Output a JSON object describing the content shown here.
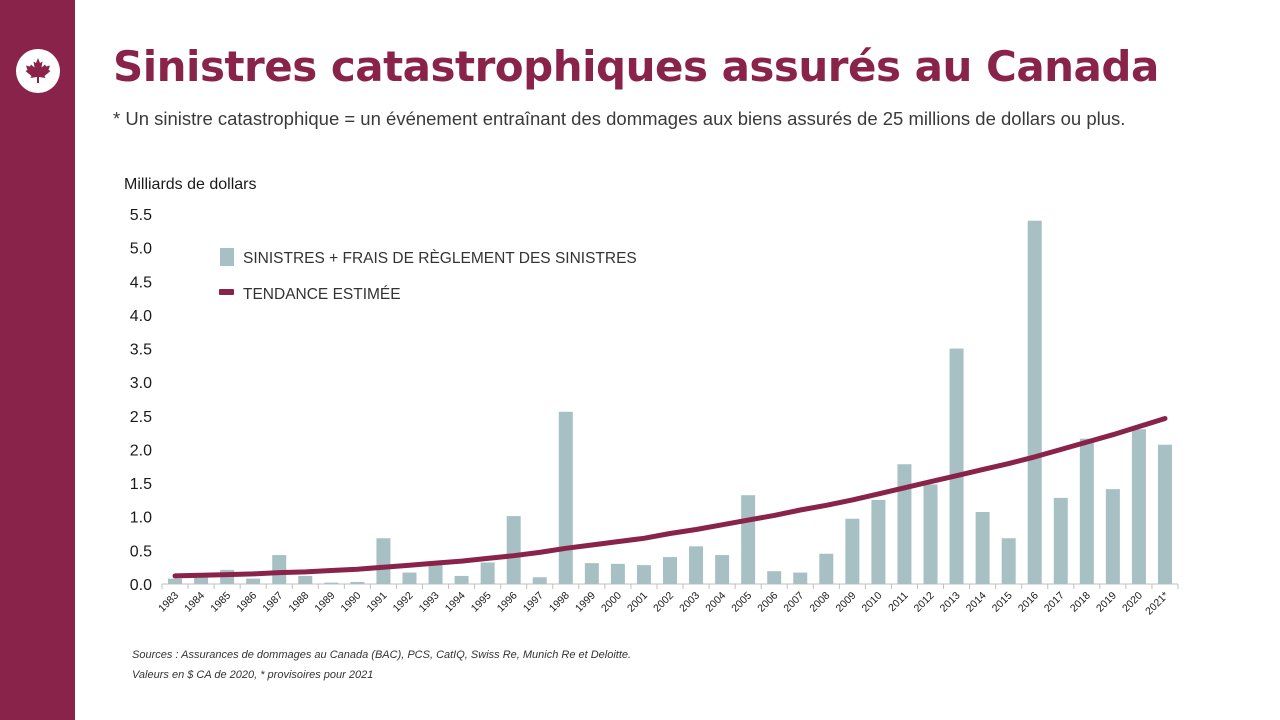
{
  "header": {
    "title": "Sinistres catastrophiques assurés au Canada",
    "subtitle": "* Un sinistre catastrophique = un événement entraînant des dommages aux biens assurés de 25 millions de dollars ou plus."
  },
  "logo": {
    "icon": "maple-leaf-icon"
  },
  "colors": {
    "brand": "#8a2349",
    "bars": "#a7c0c4",
    "trend": "#8a2349"
  },
  "chart_data": {
    "type": "bar",
    "ylabel": "Milliards de dollars",
    "ylim": [
      0,
      5.5
    ],
    "yticks": [
      "0.0",
      "0.5",
      "1.0",
      "1.5",
      "2.0",
      "2.5",
      "3.0",
      "3.5",
      "4.0",
      "4.5",
      "5.0",
      "5.5"
    ],
    "grid": false,
    "legend_position": "top-left",
    "categories": [
      "1983",
      "1984",
      "1985",
      "1986",
      "1987",
      "1988",
      "1989",
      "1990",
      "1991",
      "1992",
      "1993",
      "1994",
      "1995",
      "1996",
      "1997",
      "1998",
      "1999",
      "2000",
      "2001",
      "2002",
      "2003",
      "2004",
      "2005",
      "2006",
      "2007",
      "2008",
      "2009",
      "2010",
      "2011",
      "2012",
      "2013",
      "2014",
      "2015",
      "2016",
      "2017",
      "2018",
      "2019",
      "2020",
      "2021*"
    ],
    "series": [
      {
        "name": "SINISTRES + FRAIS DE RÈGLEMENT DES SINISTRES",
        "kind": "bar",
        "values": [
          0.08,
          0.15,
          0.21,
          0.08,
          0.43,
          0.12,
          0.02,
          0.03,
          0.68,
          0.17,
          0.3,
          0.12,
          0.32,
          1.01,
          0.1,
          2.56,
          0.31,
          0.3,
          0.28,
          0.4,
          0.56,
          0.43,
          1.32,
          0.19,
          0.17,
          0.45,
          0.97,
          1.25,
          1.78,
          1.48,
          3.5,
          1.07,
          0.68,
          5.4,
          1.28,
          2.16,
          1.41,
          2.3,
          2.07
        ]
      },
      {
        "name": "TENDANCE ESTIMÉE",
        "kind": "line",
        "values": [
          0.12,
          0.13,
          0.14,
          0.15,
          0.17,
          0.18,
          0.2,
          0.22,
          0.25,
          0.28,
          0.31,
          0.34,
          0.38,
          0.42,
          0.47,
          0.53,
          0.58,
          0.63,
          0.68,
          0.75,
          0.81,
          0.88,
          0.95,
          1.02,
          1.1,
          1.17,
          1.25,
          1.34,
          1.43,
          1.52,
          1.61,
          1.7,
          1.79,
          1.89,
          2.0,
          2.11,
          2.22,
          2.34,
          2.46
        ]
      }
    ]
  },
  "footer": {
    "sources_line1": "Sources : Assurances de dommages au Canada (BAC), PCS, CatIQ, Swiss Re, Munich Re et Deloitte.",
    "sources_line2": "Valeurs en  $ CA de 2020, * provisoires pour 2021"
  }
}
